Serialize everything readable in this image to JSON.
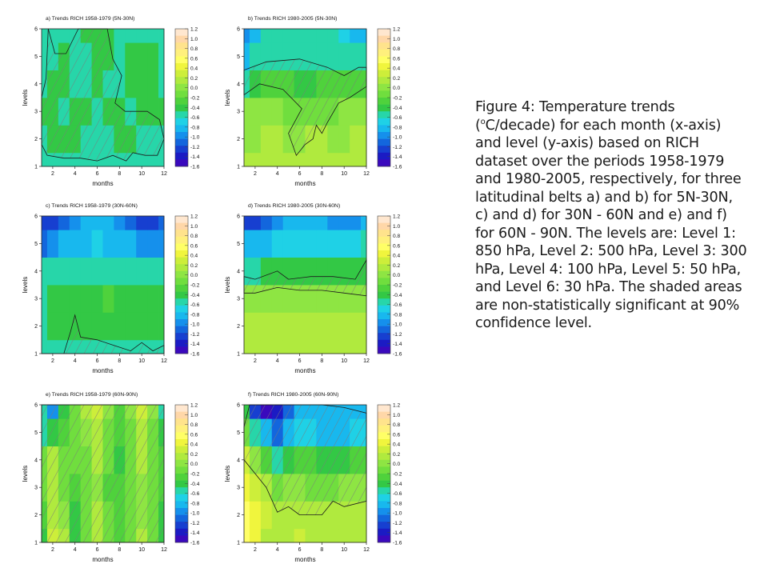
{
  "colorbar": {
    "ticks": [
      "1.2",
      "1.0",
      "0.8",
      "0.6",
      "0.4",
      "0.2",
      "0.0",
      "-0.2",
      "-0.4",
      "-0.6",
      "-0.8",
      "-1.0",
      "-1.2",
      "-1.4",
      "-1.6"
    ],
    "colors": [
      "#ffe7cf",
      "#ffd7a8",
      "#ffe38c",
      "#fff07c",
      "#ffff66",
      "#f0f53d",
      "#cdee3a",
      "#b0ea3e",
      "#8ee543",
      "#70de3e",
      "#4fd23c",
      "#33c845",
      "#27d6a9",
      "#1fd1e6",
      "#18b8ee",
      "#1590ec",
      "#1366dd",
      "#173fd0",
      "#1b1bc4",
      "#3a09bd"
    ]
  },
  "panels": [
    {
      "title": "a) Trends RICH 1958-1979 (5N-30N)",
      "xlabel": "months",
      "ylabel": "levels",
      "xticks": [
        "2",
        "4",
        "6",
        "8",
        "10",
        "12"
      ],
      "yticks": [
        "1",
        "2",
        "3",
        "4",
        "5",
        "6"
      ]
    },
    {
      "title": "b) Trends RICH 1980-2005 (5N-30N)",
      "xlabel": "months",
      "ylabel": "levels",
      "xticks": [
        "2",
        "4",
        "6",
        "8",
        "10",
        "12"
      ],
      "yticks": [
        "1",
        "2",
        "3",
        "4",
        "5",
        "6"
      ]
    },
    {
      "title": "c) Trends RICH 1958-1979 (30N-60N)",
      "xlabel": "months",
      "ylabel": "levels",
      "xticks": [
        "2",
        "4",
        "6",
        "8",
        "10",
        "12"
      ],
      "yticks": [
        "1",
        "2",
        "3",
        "4",
        "5",
        "6"
      ]
    },
    {
      "title": "d) Trends RICH 1980-2005 (30N-60N)",
      "xlabel": "months",
      "ylabel": "levels",
      "xticks": [
        "2",
        "4",
        "6",
        "8",
        "10",
        "12"
      ],
      "yticks": [
        "1",
        "2",
        "3",
        "4",
        "5",
        "6"
      ]
    },
    {
      "title": "e) Trends RICH 1958-1979 (60N-90N)",
      "xlabel": "months",
      "ylabel": "levels",
      "xticks": [
        "2",
        "4",
        "6",
        "8",
        "10",
        "12"
      ],
      "yticks": [
        "1",
        "2",
        "3",
        "4",
        "5",
        "6"
      ]
    },
    {
      "title": "f) Trends RICH 1980-2005 (60N-90N)",
      "xlabel": "months",
      "ylabel": "levels",
      "xticks": [
        "2",
        "4",
        "6",
        "8",
        "10",
        "12"
      ],
      "yticks": [
        "1",
        "2",
        "3",
        "4",
        "5",
        "6"
      ]
    }
  ],
  "caption": {
    "part1": "Figure 4: Temperature trends (",
    "sup": "o",
    "part2": "C/decade) for each month (x-axis) and level (y-axis) based on RICH dataset over the periods 1958-1979 and 1980-2005, respectively, for three latitudinal belts a) and b) for 5N-30N, c) and d) for 30N - 60N and e) and f) for 60N - 90N. The levels are: Level 1: 850 hPa, Level 2: 500 hPa, Level 3: 300 hPa, Level 4: 100 hPa, Level 5: 50 hPa, and Level 6: 30 hPa. The shaded areas are non-statistically significant at 90% confidence level."
  },
  "chart_data": [
    {
      "type": "heatmap",
      "title": "a) Trends RICH 1958-1979 (5N-30N)",
      "xlabel": "months",
      "ylabel": "levels",
      "x": [
        1,
        2,
        3,
        4,
        5,
        6,
        7,
        8,
        9,
        10,
        11,
        12
      ],
      "y": [
        1,
        2,
        3,
        4,
        5,
        6
      ],
      "xlim": [
        1,
        12
      ],
      "ylim": [
        1,
        6
      ],
      "clim": [
        -1.6,
        1.2
      ],
      "z": [
        [
          -0.6,
          -0.6,
          -0.5,
          -0.5,
          -0.6,
          -0.6,
          -0.6,
          -0.5,
          -0.5,
          -0.6,
          -0.6,
          -0.6
        ],
        [
          -0.5,
          -0.4,
          -0.4,
          -0.4,
          -0.5,
          -0.5,
          -0.5,
          -0.4,
          -0.4,
          -0.5,
          -0.5,
          -0.5
        ],
        [
          -0.4,
          -0.4,
          -0.5,
          -0.4,
          -0.4,
          -0.5,
          -0.4,
          -0.4,
          -0.5,
          -0.4,
          -0.4,
          -0.4
        ],
        [
          -0.5,
          -0.4,
          -0.4,
          -0.5,
          -0.5,
          -0.4,
          -0.5,
          -0.5,
          -0.4,
          -0.4,
          -0.4,
          -0.5
        ],
        [
          -0.5,
          -0.5,
          -0.4,
          -0.5,
          -0.5,
          -0.4,
          -0.4,
          -0.5,
          -0.4,
          -0.4,
          -0.4,
          -0.5
        ],
        [
          -0.6,
          -0.5,
          -0.5,
          -0.5,
          -0.4,
          -0.4,
          -0.4,
          -0.5,
          -0.5,
          -0.5,
          -0.5,
          -0.6
        ]
      ],
      "nonsignificant_region": [
        [
          1.6,
          6
        ],
        [
          2.2,
          5.1
        ],
        [
          3.2,
          5.1
        ],
        [
          4.3,
          6
        ],
        [
          6.9,
          6
        ],
        [
          7.4,
          4.9
        ],
        [
          8.2,
          4.3
        ],
        [
          7.6,
          3.3
        ],
        [
          8.5,
          3
        ],
        [
          10.5,
          3
        ],
        [
          11.6,
          2.7
        ],
        [
          12,
          2
        ],
        [
          11.4,
          1.4
        ],
        [
          10.3,
          1.4
        ],
        [
          9.2,
          1.5
        ],
        [
          8.6,
          1.2
        ],
        [
          7.4,
          1.4
        ],
        [
          6,
          1.2
        ],
        [
          4.5,
          1.3
        ],
        [
          3,
          1.3
        ],
        [
          1.5,
          1.4
        ],
        [
          1,
          1.8
        ],
        [
          1,
          3.5
        ],
        [
          1.4,
          4.2
        ]
      ]
    },
    {
      "type": "heatmap",
      "title": "b) Trends RICH 1980-2005 (5N-30N)",
      "xlabel": "months",
      "ylabel": "levels",
      "x": [
        1,
        2,
        3,
        4,
        5,
        6,
        7,
        8,
        9,
        10,
        11,
        12
      ],
      "y": [
        1,
        2,
        3,
        4,
        5,
        6
      ],
      "xlim": [
        1,
        12
      ],
      "ylim": [
        1,
        6
      ],
      "clim": [
        -1.6,
        1.2
      ],
      "z": [
        [
          0.1,
          0.1,
          0.1,
          0.1,
          0.1,
          0.1,
          0.1,
          0.1,
          0.1,
          0.1,
          0.1,
          0.1
        ],
        [
          0.0,
          0.0,
          0.1,
          0.1,
          0.0,
          0.0,
          0.1,
          0.1,
          0.0,
          0.0,
          0.1,
          0.1
        ],
        [
          0.0,
          0.0,
          0.0,
          0.0,
          -0.1,
          -0.2,
          -0.2,
          -0.2,
          -0.1,
          0.0,
          0.0,
          0.0
        ],
        [
          -0.5,
          -0.4,
          -0.3,
          -0.3,
          -0.3,
          -0.4,
          -0.4,
          -0.3,
          -0.3,
          -0.3,
          -0.3,
          -0.3
        ],
        [
          -0.8,
          -0.6,
          -0.5,
          -0.5,
          -0.5,
          -0.5,
          -0.5,
          -0.5,
          -0.5,
          -0.6,
          -0.6,
          -0.6
        ],
        [
          -1.0,
          -0.8,
          -0.6,
          -0.6,
          -0.6,
          -0.6,
          -0.6,
          -0.6,
          -0.6,
          -0.7,
          -0.8,
          -0.8
        ]
      ],
      "nonsignificant_region": [
        [
          1,
          4.5
        ],
        [
          3,
          4.8
        ],
        [
          6,
          4.9
        ],
        [
          8.5,
          4.6
        ],
        [
          10,
          4.3
        ],
        [
          11.3,
          4.6
        ],
        [
          12,
          4.6
        ],
        [
          12,
          3.9
        ],
        [
          10.5,
          3.5
        ],
        [
          9.5,
          3.3
        ],
        [
          8.5,
          2.6
        ],
        [
          8,
          2.2
        ],
        [
          7.5,
          2.5
        ],
        [
          7.2,
          2
        ],
        [
          6.5,
          1.8
        ],
        [
          5.7,
          1.4
        ],
        [
          5,
          2.2
        ],
        [
          6.2,
          3.1
        ],
        [
          4.5,
          3.8
        ],
        [
          2.4,
          4
        ],
        [
          1,
          3.6
        ]
      ]
    },
    {
      "type": "heatmap",
      "title": "c) Trends RICH 1958-1979 (30N-60N)",
      "xlabel": "months",
      "ylabel": "levels",
      "x": [
        1,
        2,
        3,
        4,
        5,
        6,
        7,
        8,
        9,
        10,
        11,
        12
      ],
      "y": [
        1,
        2,
        3,
        4,
        5,
        6
      ],
      "xlim": [
        1,
        12
      ],
      "ylim": [
        1,
        6
      ],
      "clim": [
        -1.6,
        1.2
      ],
      "z": [
        [
          -0.6,
          -0.5,
          -0.5,
          -0.5,
          -0.5,
          -0.5,
          -0.5,
          -0.5,
          -0.5,
          -0.5,
          -0.5,
          -0.5
        ],
        [
          -0.5,
          -0.4,
          -0.4,
          -0.4,
          -0.4,
          -0.4,
          -0.4,
          -0.4,
          -0.4,
          -0.4,
          -0.4,
          -0.4
        ],
        [
          -0.5,
          -0.4,
          -0.4,
          -0.4,
          -0.4,
          -0.4,
          -0.3,
          -0.4,
          -0.4,
          -0.4,
          -0.4,
          -0.4
        ],
        [
          -0.6,
          -0.6,
          -0.6,
          -0.5,
          -0.5,
          -0.5,
          -0.5,
          -0.5,
          -0.5,
          -0.5,
          -0.5,
          -0.6
        ],
        [
          -1.1,
          -1.0,
          -0.9,
          -0.8,
          -0.8,
          -0.7,
          -0.8,
          -0.9,
          -0.9,
          -1.0,
          -1.0,
          -1.0
        ],
        [
          -1.3,
          -1.2,
          -1.1,
          -1.0,
          -0.9,
          -0.8,
          -0.9,
          -1.0,
          -1.1,
          -1.2,
          -1.2,
          -1.1
        ]
      ],
      "nonsignificant_region": [
        [
          1,
          1
        ],
        [
          3,
          1
        ],
        [
          3.6,
          1.8
        ],
        [
          4,
          2.4
        ],
        [
          4.5,
          1.6
        ],
        [
          6,
          1.5
        ],
        [
          7.5,
          1.3
        ],
        [
          9,
          1.1
        ],
        [
          10,
          1.4
        ],
        [
          11,
          1.1
        ],
        [
          12,
          1.3
        ],
        [
          12,
          1
        ]
      ]
    },
    {
      "type": "heatmap",
      "title": "d) Trends RICH 1980-2005 (30N-60N)",
      "xlabel": "months",
      "ylabel": "levels",
      "x": [
        1,
        2,
        3,
        4,
        5,
        6,
        7,
        8,
        9,
        10,
        11,
        12
      ],
      "y": [
        1,
        2,
        3,
        4,
        5,
        6
      ],
      "xlim": [
        1,
        12
      ],
      "ylim": [
        1,
        6
      ],
      "clim": [
        -1.6,
        1.2
      ],
      "z": [
        [
          0.2,
          0.2,
          0.2,
          0.2,
          0.2,
          0.2,
          0.2,
          0.2,
          0.2,
          0.2,
          0.2,
          0.2
        ],
        [
          0.1,
          0.1,
          0.1,
          0.1,
          0.1,
          0.1,
          0.1,
          0.2,
          0.1,
          0.1,
          0.1,
          0.1
        ],
        [
          0.0,
          0.0,
          0.0,
          0.0,
          0.0,
          0.0,
          0.0,
          0.0,
          0.0,
          0.0,
          0.0,
          0.0
        ],
        [
          -0.5,
          -0.5,
          -0.4,
          -0.4,
          -0.4,
          -0.4,
          -0.4,
          -0.4,
          -0.4,
          -0.4,
          -0.4,
          -0.4
        ],
        [
          -0.9,
          -0.8,
          -0.8,
          -0.7,
          -0.7,
          -0.7,
          -0.7,
          -0.7,
          -0.7,
          -0.7,
          -0.7,
          -0.6
        ],
        [
          -1.3,
          -1.2,
          -1.1,
          -1.0,
          -0.9,
          -0.9,
          -0.9,
          -0.9,
          -1.0,
          -1.0,
          -1.0,
          -0.8
        ]
      ],
      "nonsignificant_region": [
        [
          1,
          3.8
        ],
        [
          2,
          3.7
        ],
        [
          4,
          4
        ],
        [
          5,
          3.7
        ],
        [
          7,
          3.8
        ],
        [
          9,
          3.8
        ],
        [
          11,
          3.7
        ],
        [
          12,
          4.4
        ],
        [
          12,
          3.1
        ],
        [
          10,
          3.2
        ],
        [
          8,
          3.3
        ],
        [
          6,
          3.3
        ],
        [
          4,
          3.4
        ],
        [
          2,
          3.2
        ],
        [
          1,
          3.2
        ]
      ]
    },
    {
      "type": "heatmap",
      "title": "e) Trends RICH 1958-1979 (60N-90N)",
      "xlabel": "months",
      "ylabel": "levels",
      "x": [
        1,
        2,
        3,
        4,
        5,
        6,
        7,
        8,
        9,
        10,
        11,
        12
      ],
      "y": [
        1,
        2,
        3,
        4,
        5,
        6
      ],
      "xlim": [
        1,
        12
      ],
      "ylim": [
        1,
        6
      ],
      "clim": [
        -1.6,
        1.2
      ],
      "z": [
        [
          -0.4,
          0.3,
          0.1,
          -0.4,
          -0.1,
          0.2,
          -0.2,
          -0.3,
          -0.1,
          0.1,
          -0.2,
          -0.4
        ],
        [
          -0.3,
          0.2,
          0.0,
          -0.4,
          -0.2,
          0.1,
          -0.2,
          -0.3,
          -0.2,
          0.0,
          -0.2,
          -0.4
        ],
        [
          -0.2,
          0.2,
          -0.1,
          -0.3,
          -0.2,
          0.0,
          -0.3,
          -0.3,
          -0.2,
          0.0,
          -0.2,
          -0.3
        ],
        [
          -0.2,
          0.1,
          -0.2,
          -0.2,
          -0.1,
          0.1,
          -0.2,
          -0.4,
          -0.2,
          0.1,
          -0.2,
          -0.3
        ],
        [
          -0.5,
          -0.4,
          -0.3,
          -0.2,
          0.0,
          0.2,
          -0.1,
          -0.3,
          -0.1,
          0.2,
          -0.1,
          -0.4
        ],
        [
          -0.6,
          -1.0,
          -0.4,
          -0.1,
          0.1,
          0.3,
          0.0,
          -0.3,
          0.0,
          0.3,
          0.0,
          -0.5
        ]
      ],
      "nonsignificant_region": [
        [
          1,
          6
        ],
        [
          12,
          6
        ],
        [
          12,
          1
        ],
        [
          1,
          1
        ]
      ]
    },
    {
      "type": "heatmap",
      "title": "f) Trends RICH 1980-2005 (60N-90N)",
      "xlabel": "months",
      "ylabel": "levels",
      "x": [
        1,
        2,
        3,
        4,
        5,
        6,
        7,
        8,
        9,
        10,
        11,
        12
      ],
      "y": [
        1,
        2,
        3,
        4,
        5,
        6
      ],
      "xlim": [
        1,
        12
      ],
      "ylim": [
        1,
        6
      ],
      "clim": [
        -1.6,
        1.2
      ],
      "z": [
        [
          0.5,
          0.4,
          0.2,
          0.2,
          0.2,
          0.3,
          0.2,
          0.2,
          0.2,
          0.2,
          0.2,
          0.2
        ],
        [
          0.5,
          0.4,
          0.3,
          0.2,
          0.1,
          0.2,
          0.2,
          0.1,
          0.1,
          0.1,
          0.1,
          0.1
        ],
        [
          0.4,
          0.3,
          0.1,
          -0.1,
          0.0,
          0.0,
          -0.1,
          -0.1,
          -0.1,
          0.0,
          0.0,
          0.0
        ],
        [
          0.3,
          0.0,
          -0.3,
          -0.5,
          -0.4,
          -0.3,
          -0.3,
          -0.4,
          -0.4,
          -0.4,
          -0.3,
          -0.3
        ],
        [
          -0.2,
          -0.6,
          -0.9,
          -1.1,
          -0.8,
          -0.7,
          -0.7,
          -0.8,
          -0.8,
          -0.8,
          -0.7,
          -0.7
        ],
        [
          -0.4,
          -1.2,
          -1.5,
          -1.4,
          -1.1,
          -0.9,
          -0.9,
          -0.9,
          -0.9,
          -0.9,
          -0.8,
          -0.9
        ]
      ],
      "nonsignificant_region": [
        [
          1.5,
          6
        ],
        [
          8,
          6
        ],
        [
          10,
          5.9
        ],
        [
          12,
          5.7
        ],
        [
          12,
          2.5
        ],
        [
          10,
          2.3
        ],
        [
          9,
          2.5
        ],
        [
          8,
          2
        ],
        [
          6,
          2
        ],
        [
          5,
          2.3
        ],
        [
          4,
          2.1
        ],
        [
          3,
          3
        ],
        [
          2,
          3.5
        ],
        [
          1,
          4
        ],
        [
          1,
          5.2
        ]
      ]
    }
  ]
}
